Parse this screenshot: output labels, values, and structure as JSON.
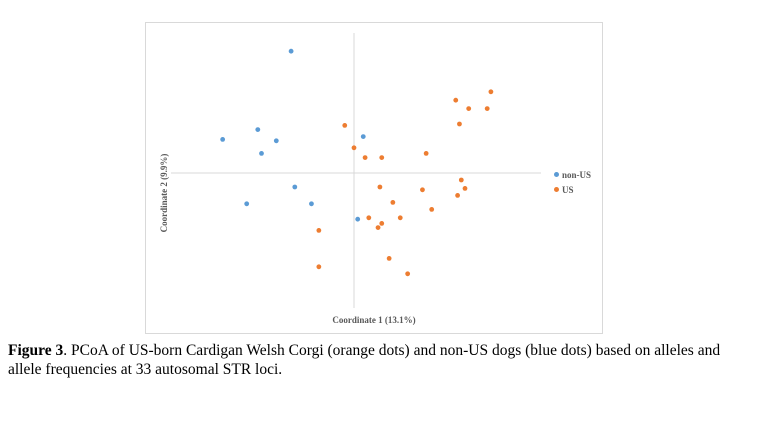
{
  "chart_data": {
    "type": "scatter",
    "xlabel": "Coordinate 1 (13.1%)",
    "ylabel": "Coordinate 2 (9.9%)",
    "xlim": [
      -1.0,
      1.0
    ],
    "ylim": [
      -1.0,
      1.0
    ],
    "grid": false,
    "legend_position": "right",
    "series": [
      {
        "name": "non-US",
        "color": "#5b9bd5",
        "points": [
          {
            "x": -0.34,
            "y": 0.87
          },
          {
            "x": -0.71,
            "y": 0.24
          },
          {
            "x": -0.52,
            "y": 0.31
          },
          {
            "x": -0.5,
            "y": 0.14
          },
          {
            "x": -0.42,
            "y": 0.23
          },
          {
            "x": -0.58,
            "y": -0.22
          },
          {
            "x": -0.32,
            "y": -0.1
          },
          {
            "x": -0.23,
            "y": -0.22
          },
          {
            "x": 0.05,
            "y": 0.26
          },
          {
            "x": 0.02,
            "y": -0.33
          }
        ]
      },
      {
        "name": "US",
        "color": "#ed7d31",
        "points": [
          {
            "x": -0.05,
            "y": 0.34
          },
          {
            "x": 0.0,
            "y": 0.18
          },
          {
            "x": 0.06,
            "y": 0.11
          },
          {
            "x": 0.15,
            "y": 0.11
          },
          {
            "x": 0.39,
            "y": 0.14
          },
          {
            "x": 0.55,
            "y": 0.52
          },
          {
            "x": 0.57,
            "y": 0.35
          },
          {
            "x": 0.62,
            "y": 0.46
          },
          {
            "x": 0.74,
            "y": 0.58
          },
          {
            "x": 0.72,
            "y": 0.46
          },
          {
            "x": 0.14,
            "y": -0.1
          },
          {
            "x": 0.21,
            "y": -0.21
          },
          {
            "x": 0.37,
            "y": -0.12
          },
          {
            "x": 0.42,
            "y": -0.26
          },
          {
            "x": 0.58,
            "y": -0.05
          },
          {
            "x": 0.6,
            "y": -0.11
          },
          {
            "x": 0.56,
            "y": -0.16
          },
          {
            "x": 0.08,
            "y": -0.32
          },
          {
            "x": 0.25,
            "y": -0.32
          },
          {
            "x": 0.15,
            "y": -0.36
          },
          {
            "x": 0.13,
            "y": -0.39
          },
          {
            "x": -0.19,
            "y": -0.41
          },
          {
            "x": -0.19,
            "y": -0.67
          },
          {
            "x": 0.19,
            "y": -0.61
          },
          {
            "x": 0.29,
            "y": -0.72
          }
        ]
      }
    ]
  },
  "caption": {
    "label": "Figure 3",
    "text": ". PCoA of US-born Cardigan Welsh Corgi (orange dots) and non-US dogs (blue dots) based on alleles and allele frequencies at 33 autosomal STR loci."
  }
}
